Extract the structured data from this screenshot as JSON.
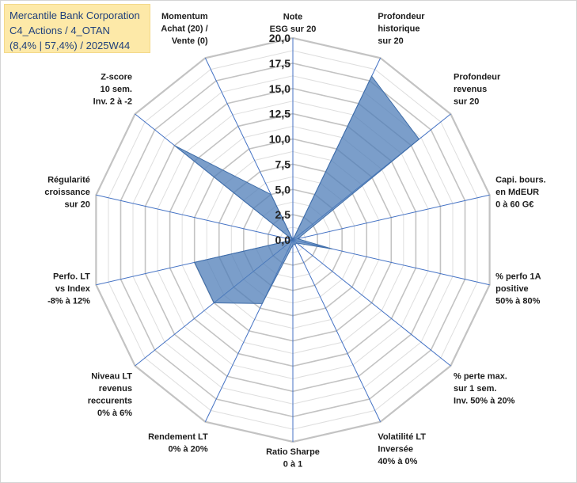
{
  "title_box": {
    "line1": "Mercantile Bank Corporation",
    "line2": "C4_Actions / 4_OTAN",
    "line3": "(8,4% | 57,4%) / 2025W44"
  },
  "colors": {
    "fill": "#4f7eb8",
    "fill_opacity": 0.75,
    "series_stroke": "#3f6da8",
    "grid": "#c3c3c3",
    "spoke": "#4472c4",
    "title_bg": "#fde9a8",
    "title_text": "#1f3f7a"
  },
  "chart_data": {
    "type": "radar",
    "rmin": 0,
    "rmax": 20,
    "major_step": 2.5,
    "minor_step": 1.25,
    "tick_labels": [
      "0,0",
      "2,5",
      "5,0",
      "7,5",
      "10,0",
      "12,5",
      "15,0",
      "17,5",
      "20,0"
    ],
    "axes": [
      {
        "label": [
          "Note",
          "ESG sur 20"
        ]
      },
      {
        "label": [
          "Profondeur",
          "historique",
          "sur 20"
        ]
      },
      {
        "label": [
          "Profondeur",
          "revenus",
          "sur 20"
        ]
      },
      {
        "label": [
          "Capi. bours.",
          "en MdEUR",
          "0 à 60 G€"
        ]
      },
      {
        "label": [
          "% perfo 1A",
          "positive",
          "50% à 80%"
        ]
      },
      {
        "label": [
          "% perte max.",
          "sur 1 sem.",
          "Inv. 50% à 20%"
        ]
      },
      {
        "label": [
          "Volatilité LT",
          "Inversée",
          "40% à 0%"
        ]
      },
      {
        "label": [
          "Ratio Sharpe",
          "0 à 1"
        ]
      },
      {
        "label": [
          "Rendement LT",
          "0% à 20%"
        ]
      },
      {
        "label": [
          "Niveau LT",
          "revenus",
          "reccurents",
          "0% à 6%"
        ]
      },
      {
        "label": [
          "Perfo. LT",
          "vs Index",
          "-8% à 12%"
        ]
      },
      {
        "label": [
          "Régularité",
          "croissance",
          "sur 20"
        ]
      },
      {
        "label": [
          "Z-score",
          "10 sem.",
          "Inv. 2 à -2"
        ]
      },
      {
        "label": [
          "Momentum",
          "Achat (20) /",
          "Vente (0)"
        ]
      }
    ],
    "series": [
      {
        "name": "Mercantile Bank Corporation",
        "values": [
          0,
          18.0,
          16.0,
          0.5,
          4.0,
          0.5,
          0.5,
          0.5,
          7.0,
          10.0,
          10.0,
          0,
          15.0,
          5.0
        ]
      }
    ]
  }
}
